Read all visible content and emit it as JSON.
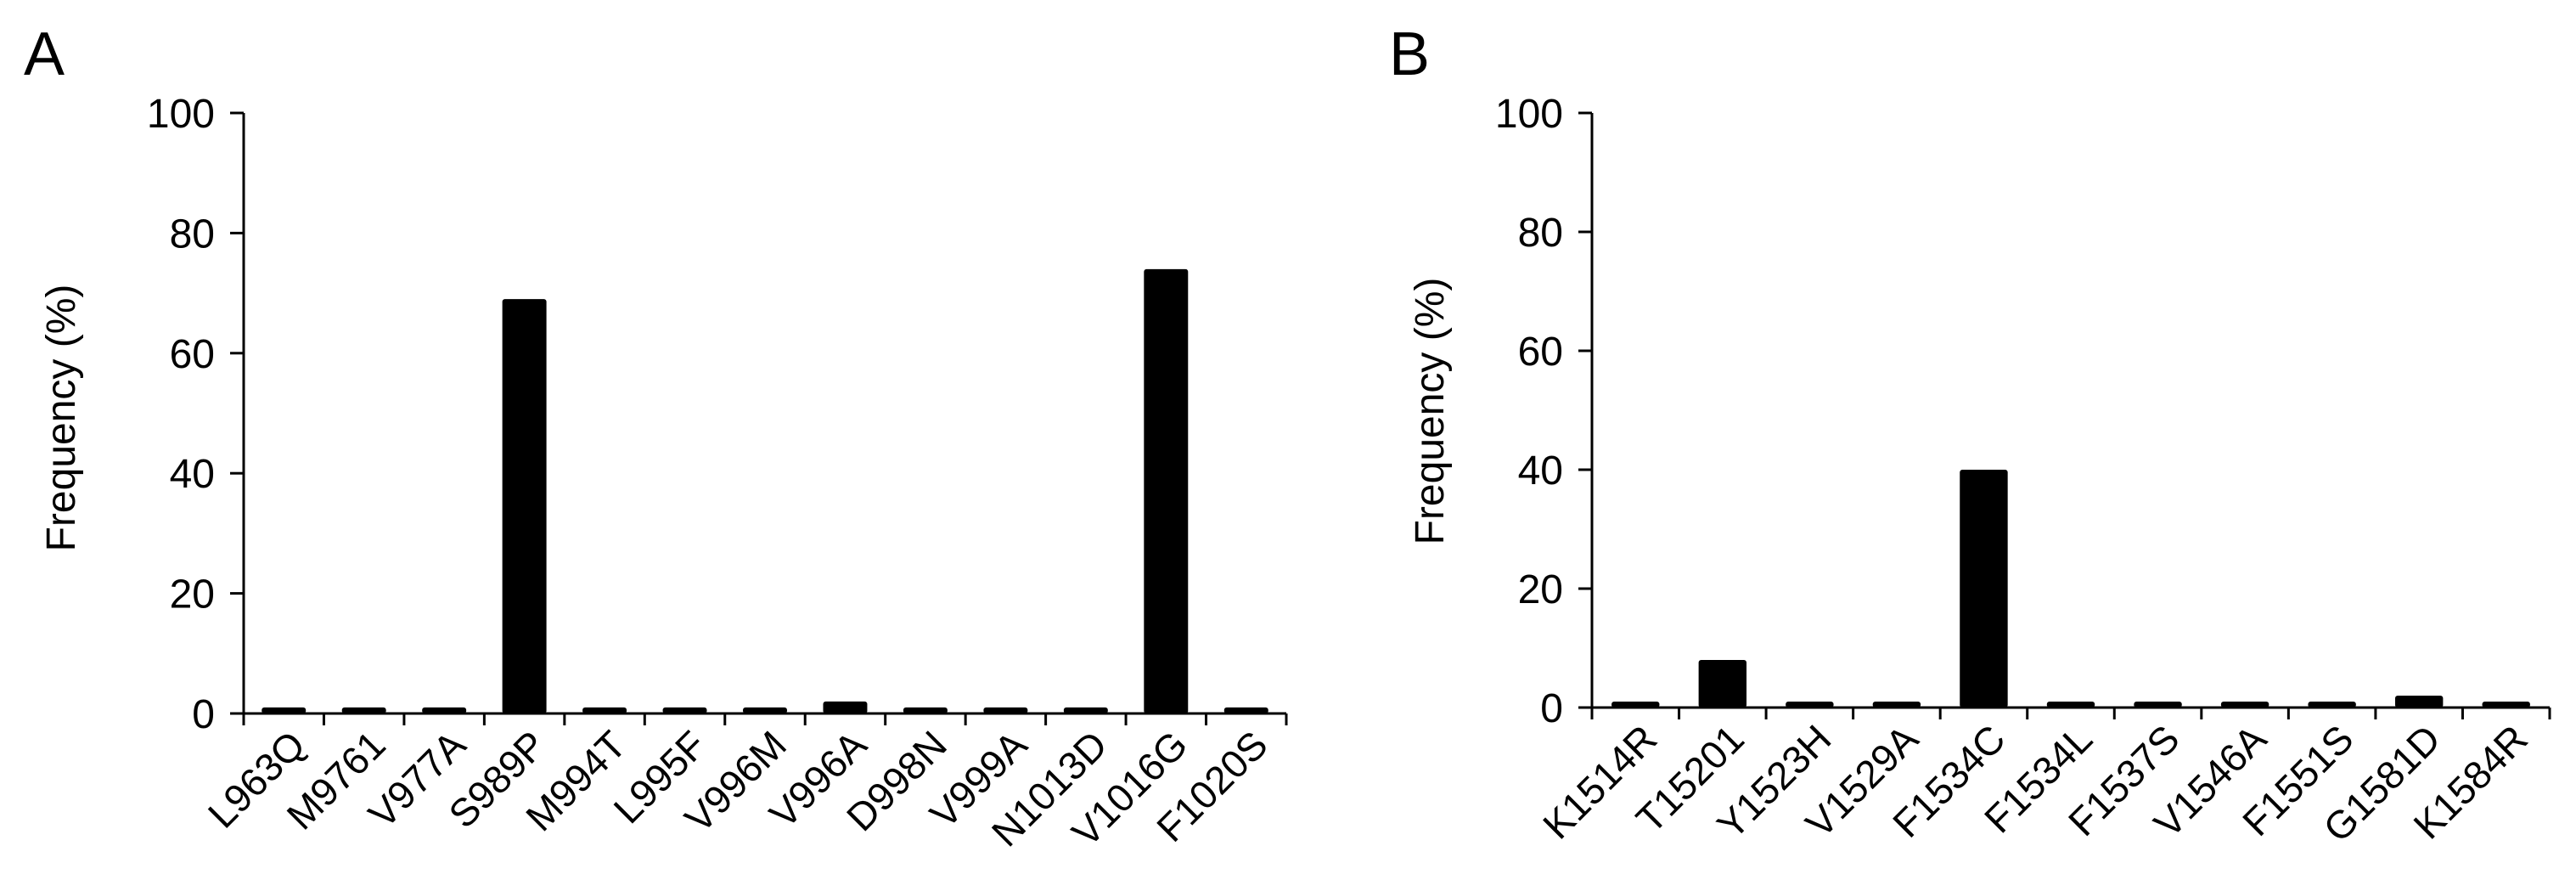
{
  "chart_data": [
    {
      "panel_label": "A",
      "type": "bar",
      "ylabel": "Frequency (%)",
      "ylim": [
        0,
        100
      ],
      "yticks": [
        "0",
        "20",
        "40",
        "60",
        "80",
        "100"
      ],
      "categories": [
        "L963Q",
        "M9761",
        "V977A",
        "S989P",
        "M994T",
        "L995F",
        "V996M",
        "V996A",
        "D998N",
        "V999A",
        "N1013D",
        "V1016G",
        "F1020S"
      ],
      "values": [
        1,
        1,
        1,
        69,
        1,
        1,
        1,
        2,
        1,
        1,
        1,
        74,
        1
      ],
      "bar_color": "#000000",
      "grid": false
    },
    {
      "panel_label": "B",
      "type": "bar",
      "ylabel": "Frequency (%)",
      "ylim": [
        0,
        100
      ],
      "yticks": [
        "0",
        "20",
        "40",
        "60",
        "80",
        "100"
      ],
      "categories": [
        "K1514R",
        "T15201",
        "Y1523H",
        "V1529A",
        "F1534C",
        "F1534L",
        "F1537S",
        "V1546A",
        "F1551S",
        "G1581D",
        "K1584R"
      ],
      "values": [
        1,
        8,
        1,
        1,
        40,
        1,
        1,
        1,
        1,
        2,
        1
      ],
      "bar_color": "#000000",
      "grid": false
    }
  ]
}
